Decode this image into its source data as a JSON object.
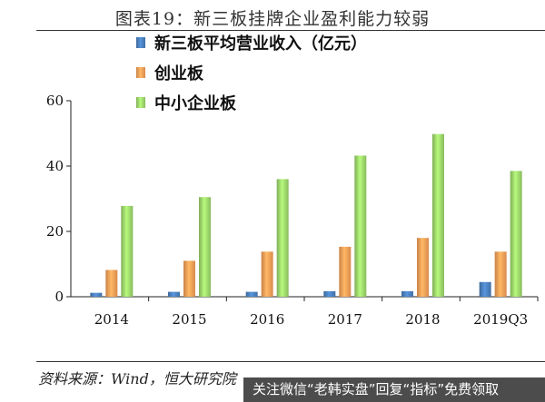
{
  "header": {
    "title": "图表19：新三板挂牌企业盈利能力较弱"
  },
  "footer": {
    "source": "资料来源：Wind，恒大研究院",
    "watermark": "关注微信“老韩实盘”回复“指标”免费领取"
  },
  "chart_data": {
    "type": "bar",
    "title": "图表19：新三板挂牌企业盈利能力较弱",
    "xlabel": "",
    "ylabel": "",
    "ylim": [
      0,
      60
    ],
    "yticks": [
      0,
      20,
      40,
      60
    ],
    "grid": false,
    "legend_position": "top-center",
    "categories": [
      "2014",
      "2015",
      "2016",
      "2017",
      "2018",
      "2019Q3"
    ],
    "series": [
      {
        "name": "新三板平均营业收入（亿元）",
        "color": "#4a7ebb",
        "values": [
          1.2,
          1.5,
          1.5,
          1.7,
          1.7,
          4.5
        ]
      },
      {
        "name": "创业板",
        "color": "#f59d56",
        "values": [
          8.2,
          11.0,
          13.8,
          15.3,
          18.0,
          13.8
        ]
      },
      {
        "name": "中小企业板",
        "color": "#9bd46a",
        "values": [
          27.8,
          30.5,
          36.0,
          43.2,
          49.8,
          38.5
        ]
      }
    ]
  }
}
